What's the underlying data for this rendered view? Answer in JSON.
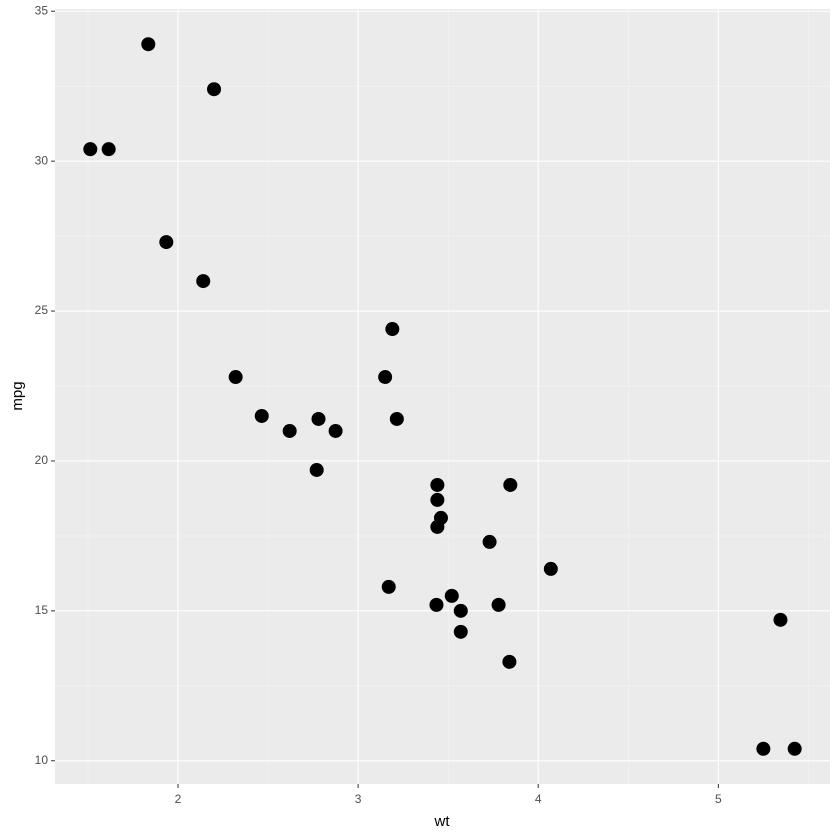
{
  "chart_data": {
    "type": "scatter",
    "x_label": "wt",
    "y_label": "mpg",
    "x": [
      2.62,
      2.875,
      2.32,
      3.215,
      3.44,
      3.46,
      3.57,
      3.19,
      3.15,
      3.44,
      3.44,
      4.07,
      3.73,
      3.78,
      5.25,
      5.424,
      5.345,
      2.2,
      1.615,
      1.835,
      2.465,
      3.52,
      3.435,
      3.84,
      3.845,
      1.935,
      2.14,
      1.513,
      3.17,
      2.77,
      3.57,
      2.78
    ],
    "values": [
      21.0,
      21.0,
      22.8,
      21.4,
      18.7,
      18.1,
      14.3,
      24.4,
      22.8,
      19.2,
      17.8,
      16.4,
      17.3,
      15.2,
      10.4,
      10.4,
      14.7,
      32.4,
      30.4,
      33.9,
      21.5,
      15.5,
      15.2,
      13.3,
      19.2,
      27.3,
      26.0,
      30.4,
      15.8,
      19.7,
      15.0,
      21.4
    ],
    "color": "#000000",
    "xlim": [
      1.317,
      5.62
    ],
    "ylim": [
      9.225,
      35.075
    ],
    "xticks": [
      2,
      3,
      4,
      5
    ],
    "yticks": [
      10,
      15,
      20,
      25,
      30,
      35
    ],
    "grid": true
  }
}
